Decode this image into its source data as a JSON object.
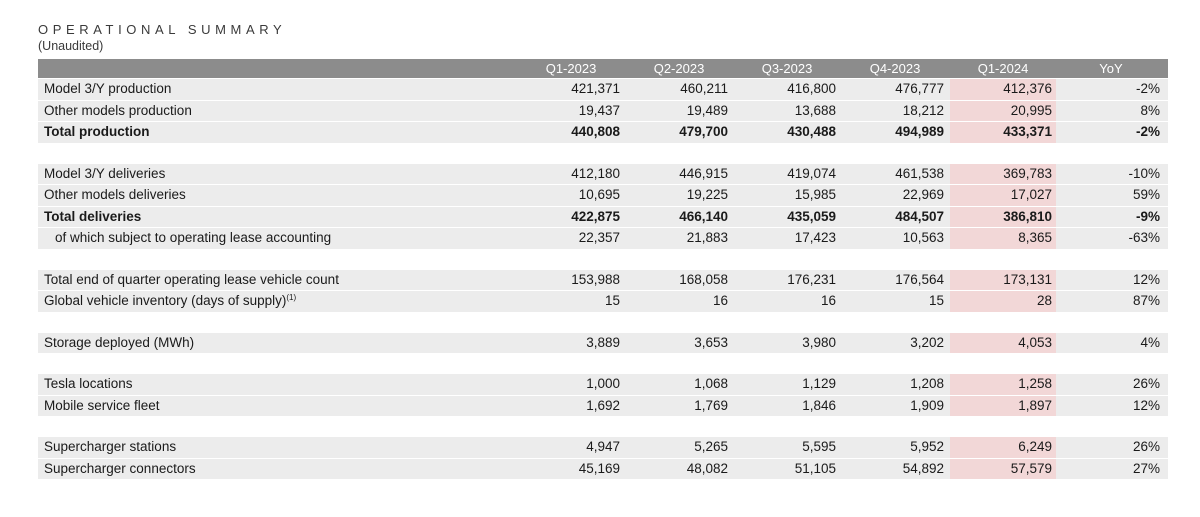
{
  "title": "OPERATIONAL SUMMARY",
  "subtitle": "(Unaudited)",
  "columns": [
    "Q1-2023",
    "Q2-2023",
    "Q3-2023",
    "Q4-2023",
    "Q1-2024",
    "YoY"
  ],
  "highlight_column": "Q1-2024",
  "colors": {
    "header_bg": "#8c8c8c",
    "row_bg": "#ececec",
    "highlight_bg": "#f2d7d7"
  },
  "sections": [
    {
      "rows": [
        {
          "label": "Model 3/Y production",
          "values": [
            "421,371",
            "460,211",
            "416,800",
            "476,777",
            "412,376",
            "-2%"
          ]
        },
        {
          "label": "Other models production",
          "values": [
            "19,437",
            "19,489",
            "13,688",
            "18,212",
            "20,995",
            "8%"
          ]
        },
        {
          "label": "Total production",
          "bold": true,
          "values": [
            "440,808",
            "479,700",
            "430,488",
            "494,989",
            "433,371",
            "-2%"
          ]
        }
      ]
    },
    {
      "rows": [
        {
          "label": "Model 3/Y deliveries",
          "values": [
            "412,180",
            "446,915",
            "419,074",
            "461,538",
            "369,783",
            "-10%"
          ]
        },
        {
          "label": "Other models deliveries",
          "values": [
            "10,695",
            "19,225",
            "15,985",
            "22,969",
            "17,027",
            "59%"
          ]
        },
        {
          "label": "Total deliveries",
          "bold": true,
          "values": [
            "422,875",
            "466,140",
            "435,059",
            "484,507",
            "386,810",
            "-9%"
          ]
        },
        {
          "label": "of which subject to operating lease accounting",
          "indent": true,
          "values": [
            "22,357",
            "21,883",
            "17,423",
            "10,563",
            "8,365",
            "-63%"
          ]
        }
      ]
    },
    {
      "rows": [
        {
          "label": "Total end of quarter operating lease vehicle count",
          "values": [
            "153,988",
            "168,058",
            "176,231",
            "176,564",
            "173,131",
            "12%"
          ]
        },
        {
          "label": "Global vehicle inventory (days of supply)",
          "footnote": "(1)",
          "values": [
            "15",
            "16",
            "16",
            "15",
            "28",
            "87%"
          ]
        }
      ]
    },
    {
      "rows": [
        {
          "label": "Storage deployed (MWh)",
          "values": [
            "3,889",
            "3,653",
            "3,980",
            "3,202",
            "4,053",
            "4%"
          ]
        }
      ]
    },
    {
      "rows": [
        {
          "label": "Tesla locations",
          "values": [
            "1,000",
            "1,068",
            "1,129",
            "1,208",
            "1,258",
            "26%"
          ]
        },
        {
          "label": "Mobile service fleet",
          "values": [
            "1,692",
            "1,769",
            "1,846",
            "1,909",
            "1,897",
            "12%"
          ]
        }
      ]
    },
    {
      "rows": [
        {
          "label": "Supercharger stations",
          "values": [
            "4,947",
            "5,265",
            "5,595",
            "5,952",
            "6,249",
            "26%"
          ]
        },
        {
          "label": "Supercharger connectors",
          "values": [
            "45,169",
            "48,082",
            "51,105",
            "54,892",
            "57,579",
            "27%"
          ]
        }
      ]
    }
  ]
}
